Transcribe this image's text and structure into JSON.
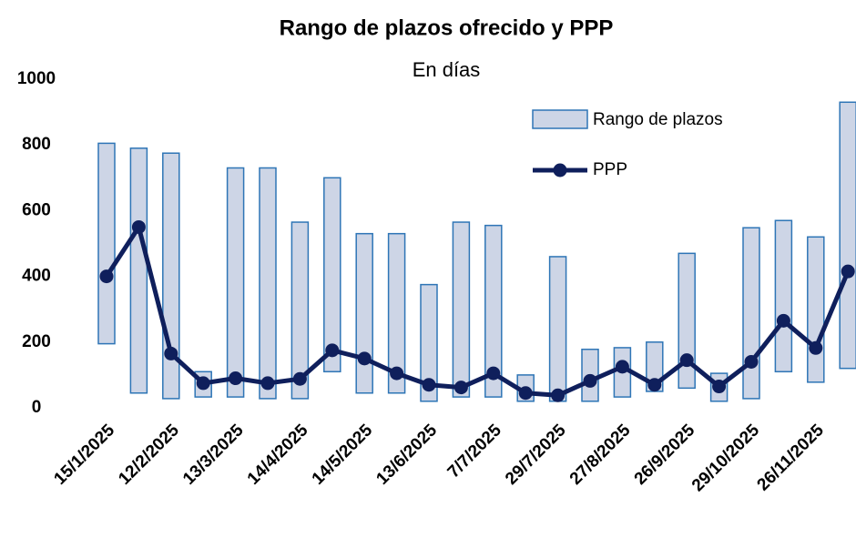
{
  "chart_data": {
    "type": "range-bar-line",
    "title": "Rango de plazos ofrecido y PPP",
    "subtitle": "En días",
    "categories": [
      "15/1/2025",
      null,
      "12/2/2025",
      null,
      "13/3/2025",
      null,
      "14/4/2025",
      null,
      "14/5/2025",
      null,
      "13/6/2025",
      null,
      "7/7/2025",
      null,
      "29/7/2025",
      null,
      "27/8/2025",
      null,
      "26/9/2025",
      null,
      "29/10/2025",
      null,
      "26/11/2025",
      null
    ],
    "series": [
      {
        "name": "Rango de plazos",
        "color": "#cdd5e6",
        "edge_color": "#2e75b6",
        "low": [
          195,
          45,
          28,
          33,
          33,
          28,
          28,
          110,
          45,
          45,
          20,
          33,
          33,
          20,
          20,
          20,
          33,
          50,
          60,
          20,
          28,
          110,
          78,
          120
        ],
        "high": [
          805,
          790,
          775,
          110,
          730,
          730,
          565,
          700,
          530,
          530,
          375,
          565,
          555,
          100,
          460,
          178,
          183,
          200,
          470,
          105,
          548,
          570,
          520,
          930
        ]
      },
      {
        "name": "PPP",
        "color": "#0f1f5c",
        "values": [
          400,
          550,
          165,
          75,
          90,
          75,
          88,
          175,
          150,
          105,
          70,
          62,
          105,
          45,
          38,
          82,
          125,
          70,
          145,
          65,
          140,
          265,
          182,
          415
        ]
      }
    ],
    "ylim": [
      0,
      1000
    ],
    "yticks": [
      0,
      200,
      400,
      600,
      800,
      1000
    ],
    "grid": false
  }
}
